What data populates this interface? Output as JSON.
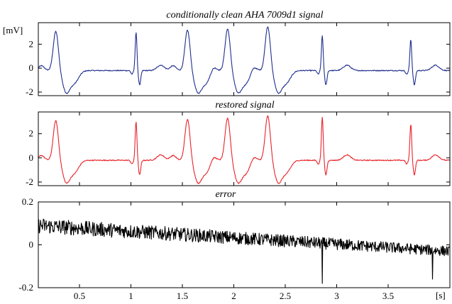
{
  "units": {
    "y": "[mV]",
    "x": "[s]"
  },
  "chart_data": [
    {
      "type": "line",
      "title": "conditionally clean AHA 7009d1 signal",
      "xlim": [
        0.1,
        4.1
      ],
      "ylim": [
        -2.3,
        3.8
      ],
      "yticks": [
        -2,
        0,
        2
      ],
      "ytick_labels": [
        "-2",
        "0",
        "2"
      ],
      "grid": false,
      "series": [
        {
          "color": "#1f2e8f",
          "description_points": "waveform",
          "beats": [
            {
              "t": 0.27,
              "kind": "wide",
              "peak": 3.1
            },
            {
              "t": 1.05,
              "kind": "narrow",
              "peak": 3.2
            },
            {
              "t": 1.55,
              "kind": "wide",
              "peak": 3.2
            },
            {
              "t": 1.94,
              "kind": "wide",
              "peak": 3.3
            },
            {
              "t": 2.33,
              "kind": "wide",
              "peak": 3.5
            },
            {
              "t": 2.86,
              "kind": "narrow",
              "peak": 2.9
            },
            {
              "t": 3.72,
              "kind": "narrow",
              "peak": 2.6
            }
          ]
        }
      ]
    },
    {
      "type": "line",
      "title": "restored signal",
      "xlim": [
        0.1,
        4.1
      ],
      "ylim": [
        -2.3,
        3.8
      ],
      "yticks": [
        -2,
        0,
        2
      ],
      "ytick_labels": [
        "-2",
        "0",
        "2"
      ],
      "grid": false,
      "series": [
        {
          "color": "#e8232a",
          "beats": [
            {
              "t": 0.27,
              "kind": "wide",
              "peak": 3.1
            },
            {
              "t": 1.05,
              "kind": "narrow",
              "peak": 3.2
            },
            {
              "t": 1.55,
              "kind": "wide",
              "peak": 3.2
            },
            {
              "t": 1.94,
              "kind": "wide",
              "peak": 3.3
            },
            {
              "t": 2.33,
              "kind": "wide",
              "peak": 3.5
            },
            {
              "t": 2.86,
              "kind": "narrow",
              "peak": 3.6
            },
            {
              "t": 3.72,
              "kind": "narrow",
              "peak": 3.0
            }
          ]
        }
      ]
    },
    {
      "type": "line",
      "title": "error",
      "xlim": [
        0.1,
        4.1
      ],
      "ylim": [
        -0.2,
        0.2
      ],
      "yticks": [
        -0.2,
        0,
        0.2
      ],
      "ytick_labels": [
        "-0.2",
        "0",
        "0.2"
      ],
      "xticks": [
        0.5,
        1,
        1.5,
        2,
        2.5,
        3,
        3.5
      ],
      "xtick_labels": [
        "0.5",
        "1",
        "1.5",
        "2",
        "2.5",
        "3",
        "3.5"
      ],
      "grid": false,
      "series": [
        {
          "color": "#000000",
          "trend_start": 0.09,
          "trend_end": -0.03,
          "noise_amplitude": 0.03,
          "spikes": [
            {
              "t": 2.86,
              "value": -0.18
            },
            {
              "t": 3.93,
              "value": -0.16
            }
          ]
        }
      ]
    }
  ]
}
